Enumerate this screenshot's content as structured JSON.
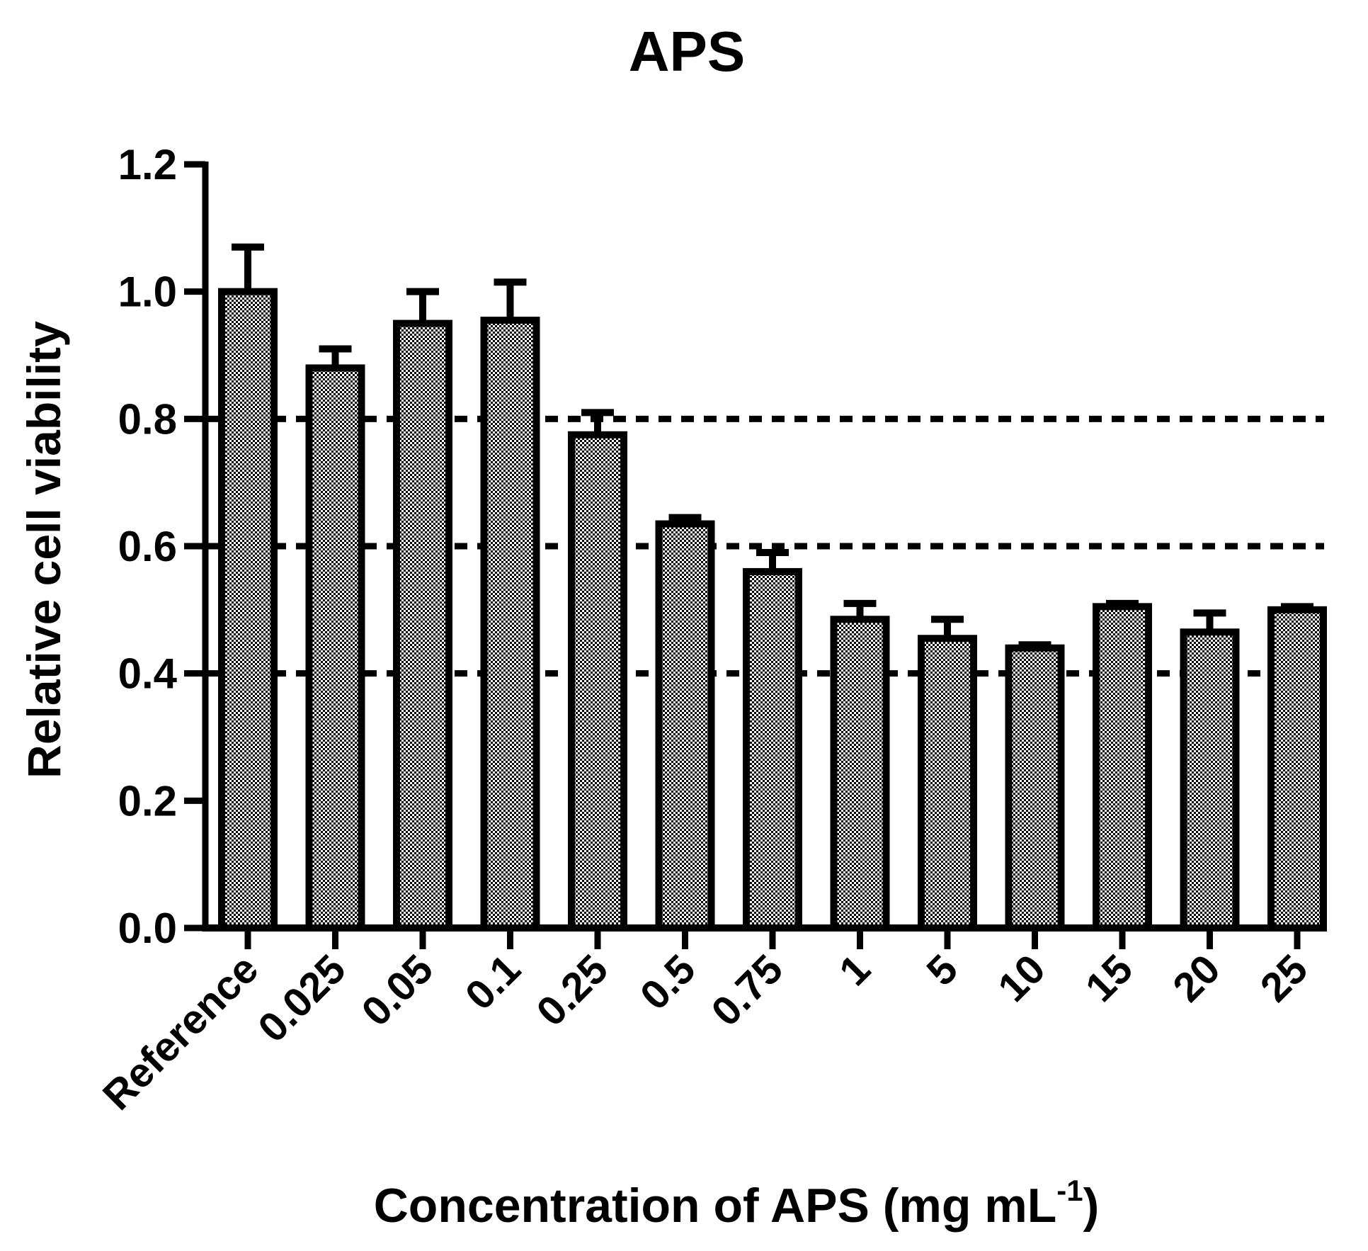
{
  "chart_data": {
    "type": "bar",
    "title": "APS",
    "xlabel_main": "Concentration of APS (mg mL",
    "xlabel_sup": "-1",
    "xlabel_tail": ")",
    "ylabel": "Relative cell viability",
    "ylim": [
      0,
      1.2
    ],
    "yticks": [
      "0.0",
      "0.2",
      "0.4",
      "0.6",
      "0.8",
      "1.0",
      "1.2"
    ],
    "categories": [
      "Reference",
      "0.025",
      "0.05",
      "0.1",
      "0.25",
      "0.5",
      "0.75",
      "1",
      "5",
      "10",
      "15",
      "20",
      "25"
    ],
    "values": [
      1.0,
      0.88,
      0.95,
      0.955,
      0.775,
      0.635,
      0.56,
      0.485,
      0.455,
      0.44,
      0.505,
      0.465,
      0.5
    ],
    "errors": [
      0.07,
      0.03,
      0.05,
      0.06,
      0.035,
      0.01,
      0.03,
      0.025,
      0.03,
      0.005,
      0.005,
      0.03,
      0.005
    ],
    "reference_lines": [
      0.4,
      0.6,
      0.8
    ],
    "bar_fill": "#d9d9d9",
    "stroke_color": "#000000",
    "grid": false,
    "legend": "none"
  }
}
